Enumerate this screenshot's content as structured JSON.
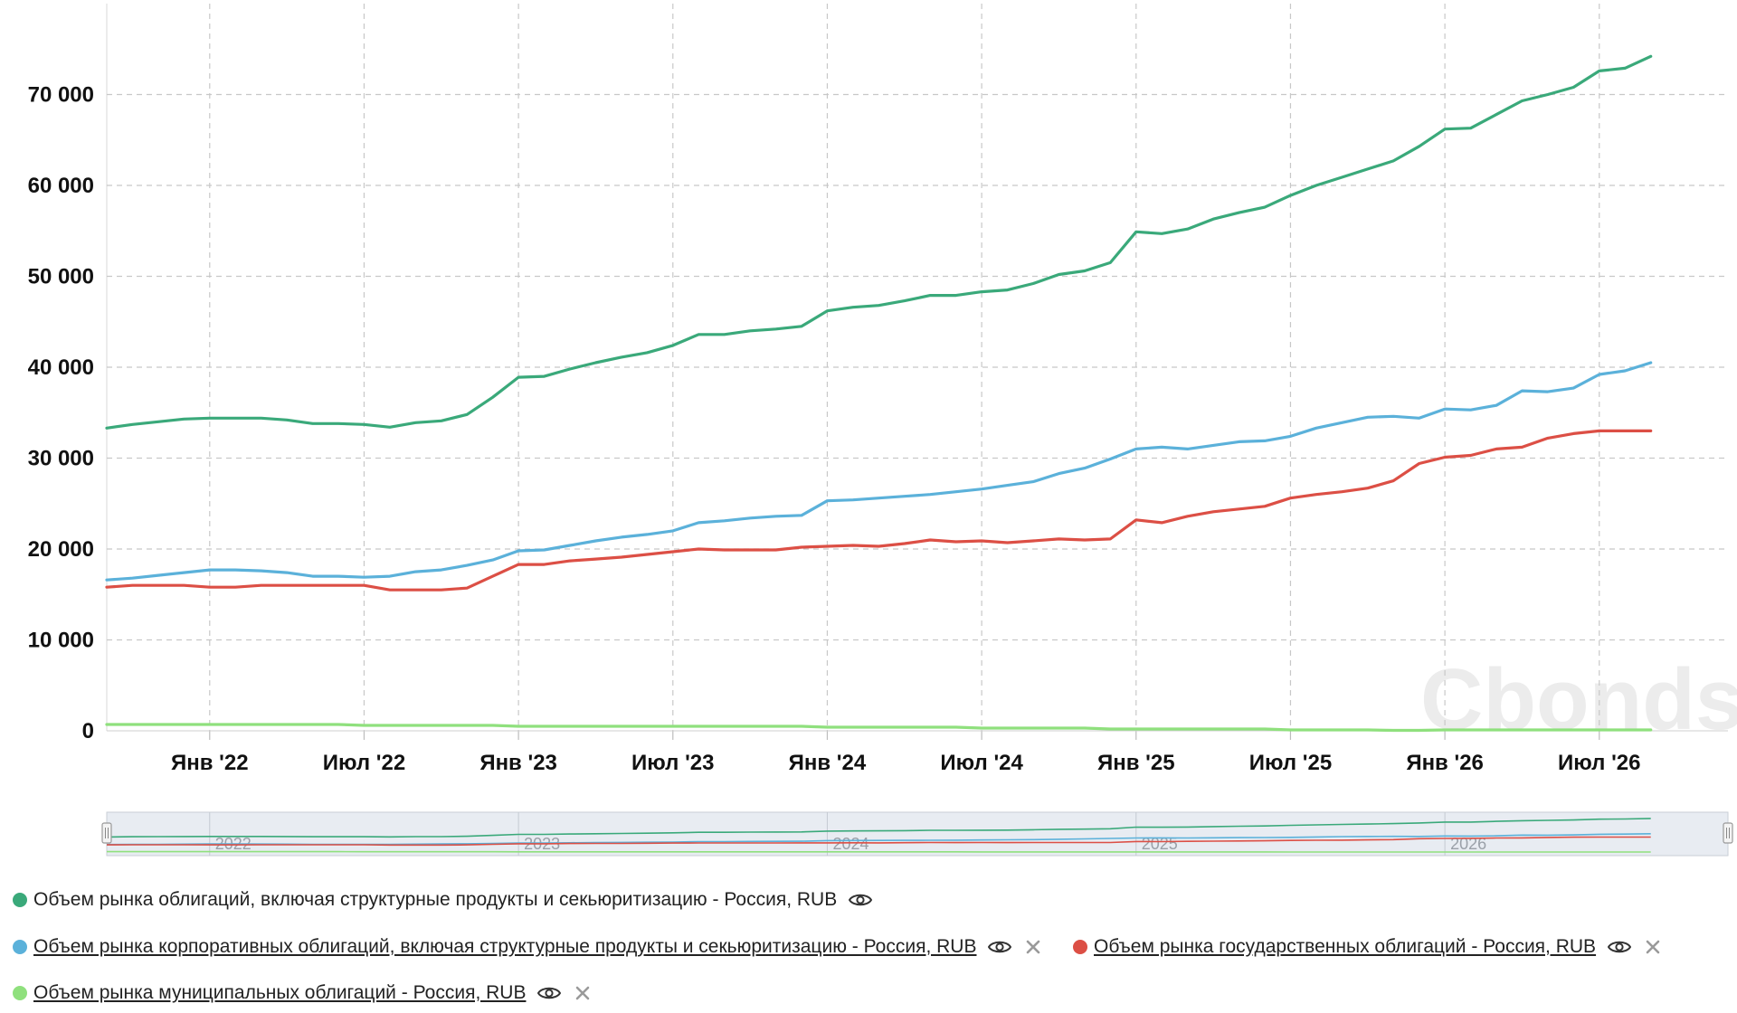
{
  "chart_data": {
    "type": "line",
    "y_ticks": [
      "0",
      "10 000",
      "20 000",
      "30 000",
      "40 000",
      "50 000",
      "60 000",
      "70 000"
    ],
    "ylim": [
      0,
      80000
    ],
    "x_ticks": [
      "Янв '22",
      "Июл '22",
      "Янв '23",
      "Июл '23",
      "Янв '24",
      "Июл '24",
      "Янв '25",
      "Июл '25",
      "Янв '26",
      "Июл '26"
    ],
    "x_tick_dates": [
      "2022-01",
      "2022-07",
      "2023-01",
      "2023-07",
      "2024-01",
      "2024-07",
      "2025-01",
      "2025-07",
      "2026-01",
      "2026-07"
    ],
    "xlim": [
      "2021-09",
      "2026-12"
    ],
    "grid": true,
    "legend_position": "bottom-left",
    "navigator_labels": [
      "2022",
      "2023",
      "2024",
      "2025",
      "2026"
    ],
    "watermark": "Cbonds",
    "x": [
      "2021-09",
      "2021-10",
      "2021-11",
      "2021-12",
      "2022-01",
      "2022-02",
      "2022-03",
      "2022-04",
      "2022-05",
      "2022-06",
      "2022-07",
      "2022-08",
      "2022-09",
      "2022-10",
      "2022-11",
      "2022-12",
      "2023-01",
      "2023-02",
      "2023-03",
      "2023-04",
      "2023-05",
      "2023-06",
      "2023-07",
      "2023-08",
      "2023-09",
      "2023-10",
      "2023-11",
      "2023-12",
      "2024-01",
      "2024-02",
      "2024-03",
      "2024-04",
      "2024-05",
      "2024-06",
      "2024-07",
      "2024-08",
      "2024-09",
      "2024-10",
      "2024-11",
      "2024-12",
      "2025-01",
      "2025-02",
      "2025-03",
      "2025-04",
      "2025-05",
      "2025-06",
      "2025-07",
      "2025-08",
      "2025-09",
      "2025-10",
      "2025-11",
      "2025-12",
      "2026-01",
      "2026-02",
      "2026-03",
      "2026-04",
      "2026-05",
      "2026-06",
      "2026-07",
      "2026-08",
      "2026-09"
    ],
    "series": [
      {
        "name": "Объем рынка облигаций, включая структурные продукты и секьюритизацию - Россия, RUB",
        "color": "#3aa97a",
        "values": [
          33300,
          33700,
          34000,
          34300,
          34400,
          34400,
          34400,
          34200,
          33800,
          33800,
          33700,
          33400,
          33900,
          34100,
          34800,
          36700,
          38900,
          39000,
          39800,
          40500,
          41100,
          41600,
          42400,
          43600,
          43600,
          44000,
          44200,
          44500,
          46200,
          46600,
          46800,
          47300,
          47900,
          47900,
          48300,
          48500,
          49200,
          50200,
          50600,
          51500,
          54900,
          54700,
          55200,
          56300,
          57000,
          57600,
          58900,
          60000,
          60900,
          61800,
          62700,
          64300,
          66200,
          66300,
          67800,
          69300,
          70000,
          70800,
          72600,
          72900,
          74200
        ]
      },
      {
        "name": "Объем рынка корпоративных облигаций, включая структурные продукты и секьюритизацию - Россия, RUB",
        "color": "#5bb1da",
        "values": [
          16600,
          16800,
          17100,
          17400,
          17700,
          17700,
          17600,
          17400,
          17000,
          17000,
          16900,
          17000,
          17500,
          17700,
          18200,
          18800,
          19800,
          19900,
          20400,
          20900,
          21300,
          21600,
          22000,
          22900,
          23100,
          23400,
          23600,
          23700,
          25300,
          25400,
          25600,
          25800,
          26000,
          26300,
          26600,
          27000,
          27400,
          28300,
          28900,
          29900,
          31000,
          31200,
          31000,
          31400,
          31800,
          31900,
          32400,
          33300,
          33900,
          34500,
          34600,
          34400,
          35400,
          35300,
          35800,
          37400,
          37300,
          37700,
          39200,
          39600,
          40500
        ]
      },
      {
        "name": "Объем рынка государственных облигаций - Россия, RUB",
        "color": "#dc4f45",
        "values": [
          15800,
          16000,
          16000,
          16000,
          15800,
          15800,
          16000,
          16000,
          16000,
          16000,
          16000,
          15500,
          15500,
          15500,
          15700,
          17000,
          18300,
          18300,
          18700,
          18900,
          19100,
          19400,
          19700,
          20000,
          19900,
          19900,
          19900,
          20200,
          20300,
          20400,
          20300,
          20600,
          21000,
          20800,
          20900,
          20700,
          20900,
          21100,
          21000,
          21100,
          23200,
          22900,
          23600,
          24100,
          24400,
          24700,
          25600,
          26000,
          26300,
          26700,
          27500,
          29400,
          30100,
          30300,
          31000,
          31200,
          32200,
          32700,
          33000,
          33000,
          33000
        ]
      },
      {
        "name": "Объем рынка муниципальных облигаций - Россия, RUB",
        "color": "#8fe07d",
        "values": [
          700,
          700,
          700,
          700,
          700,
          700,
          700,
          700,
          700,
          700,
          600,
          600,
          600,
          600,
          600,
          600,
          500,
          500,
          500,
          500,
          500,
          500,
          500,
          500,
          500,
          500,
          500,
          500,
          400,
          400,
          400,
          400,
          400,
          400,
          300,
          300,
          300,
          300,
          300,
          200,
          200,
          200,
          200,
          200,
          200,
          200,
          100,
          100,
          100,
          100,
          50,
          50,
          100,
          100,
          100,
          100,
          100,
          100,
          100,
          100,
          100
        ]
      }
    ]
  },
  "legend": [
    {
      "label": "Объем рынка облигаций, включая структурные продукты и секьюритизацию - Россия, RUB",
      "eye_icon": "eye-icon"
    },
    {
      "label": "Объем рынка корпоративных облигаций, включая структурные продукты и секьюритизацию - Россия, RUB",
      "eye_icon": "eye-icon",
      "close_icon": "close-icon"
    },
    {
      "label": "Объем рынка государственных облигаций - Россия, RUB",
      "eye_icon": "eye-icon",
      "close_icon": "close-icon"
    },
    {
      "label": "Объем рынка муниципальных облигаций - Россия, RUB",
      "eye_icon": "eye-icon",
      "close_icon": "close-icon"
    }
  ],
  "colors": {
    "grid": "#c8c8c8",
    "navigator_fill": "#e8ecf2",
    "close_icon": "#9a9a9a"
  }
}
